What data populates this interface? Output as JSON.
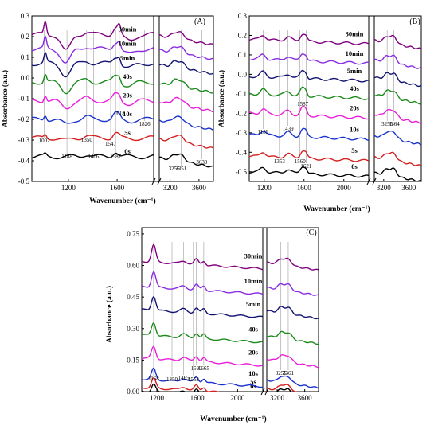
{
  "chart_data": [
    {
      "type": "line",
      "panel": "(A)",
      "ylabel": "Absorbance (a.u.)",
      "xlabel": "Wavenumber (cm⁻¹)",
      "ylim": [
        -0.5,
        0.3
      ],
      "xlim_left": [
        900,
        1900
      ],
      "xlim_right": [
        3050,
        3800
      ],
      "yticks": [
        "0.3",
        "0.2",
        "0.1",
        "0.0",
        "-0.1",
        "-0.2",
        "-0.3",
        "-0.4",
        "-0.5"
      ],
      "xticks_left": [
        "1200",
        "1600"
      ],
      "xticks_right": [
        "3200",
        "3600"
      ],
      "series": [
        {
          "name": "0s",
          "color": "#000000",
          "offset": -0.38
        },
        {
          "name": "5s",
          "color": "#d42020",
          "offset": -0.29
        },
        {
          "name": "10s",
          "color": "#1a33cc",
          "offset": -0.2
        },
        {
          "name": "20s",
          "color": "#e81fd8",
          "offset": -0.11
        },
        {
          "name": "40s",
          "color": "#1a8a1a",
          "offset": -0.02
        },
        {
          "name": "5min",
          "color": "#121270",
          "offset": 0.07
        },
        {
          "name": "10min",
          "color": "#8a2be2",
          "offset": 0.14
        },
        {
          "name": "30min",
          "color": "#800080",
          "offset": 0.21
        }
      ],
      "annotations": [
        "1002",
        "1188",
        "1350",
        "1406",
        "1547",
        "1587",
        "1618",
        "1826",
        "3256",
        "3351",
        "3639"
      ]
    },
    {
      "type": "line",
      "panel": "(B)",
      "ylabel": "Absorbance (a.u.)",
      "xlabel": "Wavenumber (cm⁻¹)",
      "ylim": [
        -0.55,
        0.3
      ],
      "xlim_left": [
        1050,
        2250
      ],
      "xlim_right": [
        3050,
        3800
      ],
      "yticks": [
        "0.3",
        "0.2",
        "0.1",
        "0.0",
        "-0.1",
        "-0.2",
        "-0.3",
        "-0.4",
        "-0.5"
      ],
      "xticks_left": [
        "1200",
        "1600",
        "2000"
      ],
      "xticks_right": [
        "3200",
        "3600"
      ],
      "series": [
        {
          "name": "0s",
          "color": "#000000",
          "offset": -0.5
        },
        {
          "name": "5s",
          "color": "#d42020",
          "offset": -0.42
        },
        {
          "name": "10s",
          "color": "#1a33cc",
          "offset": -0.31
        },
        {
          "name": "20s",
          "color": "#e81fd8",
          "offset": -0.2
        },
        {
          "name": "40s",
          "color": "#1a8a1a",
          "offset": -0.1
        },
        {
          "name": "5min",
          "color": "#121270",
          "offset": -0.01
        },
        {
          "name": "10min",
          "color": "#8a2be2",
          "offset": 0.08
        },
        {
          "name": "30min",
          "color": "#800080",
          "offset": 0.18
        }
      ],
      "annotations": [
        "1189",
        "1353",
        "1439",
        "1560",
        "1587",
        "1621",
        "3255",
        "3364"
      ]
    },
    {
      "type": "line",
      "panel": "(C)",
      "ylabel": "Absorbance (a.u.)",
      "xlabel": "Wavenumber (cm⁻¹)",
      "ylim": [
        0.0,
        0.78
      ],
      "xlim_left": [
        1050,
        2250
      ],
      "xlim_right": [
        3050,
        3800
      ],
      "yticks": [
        "0.75",
        "0.60",
        "0.45",
        "0.30",
        "0.15",
        "0.00"
      ],
      "xticks_left": [
        "1200",
        "1600",
        "2000"
      ],
      "xticks_right": [
        "3200",
        "3600"
      ],
      "series": [
        {
          "name": "0s",
          "color": "#000000",
          "offset": 0.0
        },
        {
          "name": "5s",
          "color": "#d42020",
          "offset": 0.02
        },
        {
          "name": "10s",
          "color": "#1a33cc",
          "offset": 0.06
        },
        {
          "name": "20s",
          "color": "#e81fd8",
          "offset": 0.16
        },
        {
          "name": "40s",
          "color": "#1a8a1a",
          "offset": 0.27
        },
        {
          "name": "5min",
          "color": "#121270",
          "offset": 0.39
        },
        {
          "name": "10min",
          "color": "#8a2be2",
          "offset": 0.5
        },
        {
          "name": "30min",
          "color": "#800080",
          "offset": 0.62
        }
      ],
      "annotations": [
        "1168",
        "1350",
        "1465",
        "1562",
        "1592",
        "1665",
        "3255",
        "3361"
      ]
    }
  ]
}
